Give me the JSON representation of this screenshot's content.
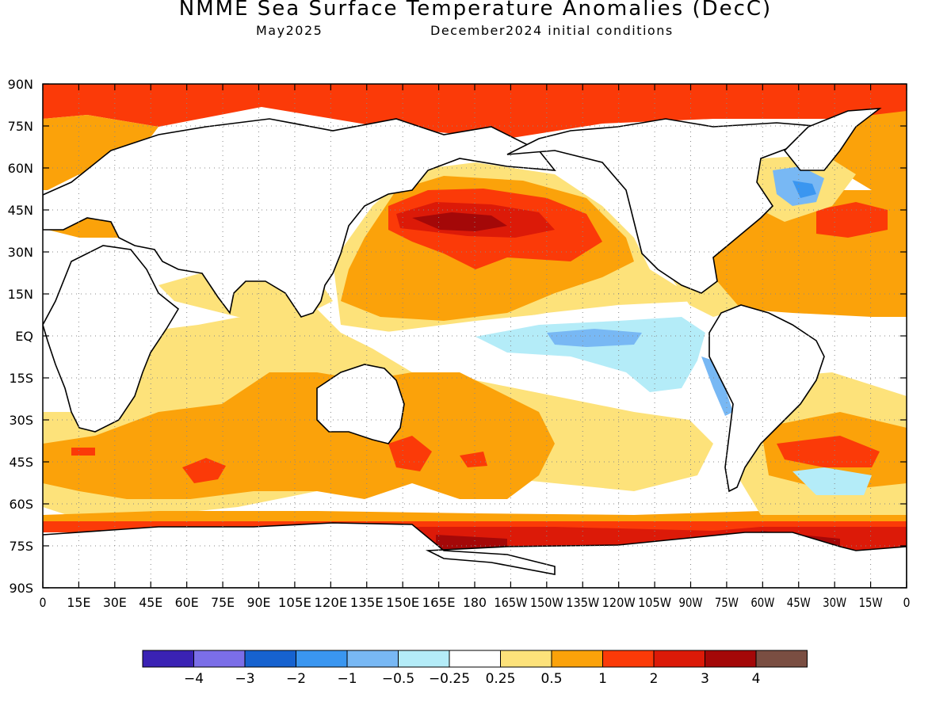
{
  "figure": {
    "title": "NMME Sea Surface Temperature Anomalies (DecC)",
    "subtitle_left": "May2025",
    "subtitle_right": "December2024 initial conditions"
  },
  "axes": {
    "lat_labels": [
      "90N",
      "75N",
      "60N",
      "45N",
      "30N",
      "15N",
      "EQ",
      "15S",
      "30S",
      "45S",
      "60S",
      "75S",
      "90S"
    ],
    "lat_values": [
      90,
      75,
      60,
      45,
      30,
      15,
      0,
      -15,
      -30,
      -45,
      -60,
      -75,
      -90
    ],
    "lon_labels": [
      "0",
      "15E",
      "30E",
      "45E",
      "60E",
      "75E",
      "90E",
      "105E",
      "120E",
      "135E",
      "150E",
      "165E",
      "180",
      "165W",
      "150W",
      "135W",
      "120W",
      "105W",
      "90W",
      "75W",
      "60W",
      "45W",
      "30W",
      "15W",
      "0"
    ],
    "lon_values": [
      0,
      15,
      30,
      45,
      60,
      75,
      90,
      105,
      120,
      135,
      150,
      165,
      180,
      195,
      210,
      225,
      240,
      255,
      270,
      285,
      300,
      315,
      330,
      345,
      360
    ],
    "grid": "dotted"
  },
  "colorbar": {
    "colors": [
      "#3a22b4",
      "#7b6ee8",
      "#1662cf",
      "#3a96f0",
      "#78b8f4",
      "#b4ecf8",
      "#ffffff",
      "#fde27a",
      "#fba20a",
      "#fb3a08",
      "#dc1a08",
      "#a40808",
      "#7a4e42"
    ],
    "labels": [
      "−4",
      "−3",
      "−2",
      "−1",
      "−0.5",
      "−0.25",
      "0.25",
      "0.5",
      "1",
      "2",
      "3",
      "4"
    ]
  },
  "chart_data": {
    "type": "heatmap",
    "title": "NMME Sea Surface Temperature Anomalies (DecC)",
    "units": "DecC",
    "lat_range": [
      -90,
      90
    ],
    "lon_range": [
      0,
      360
    ],
    "levels": [
      -4,
      -3,
      -2,
      -1,
      -0.5,
      -0.25,
      0.25,
      0.5,
      1,
      2,
      3,
      4
    ],
    "regions": [
      {
        "region": "Arctic Ocean (poleward of ~80N)",
        "lon_range": [
          0,
          360
        ],
        "lat_range": [
          80,
          90
        ],
        "anomaly": 2
      },
      {
        "region": "North Pacific central warm core",
        "lon_range": [
          150,
          215
        ],
        "lat_range": [
          33,
          48
        ],
        "anomaly": 3
      },
      {
        "region": "North Pacific",
        "lon_range": [
          135,
          235
        ],
        "lat_range": [
          25,
          55
        ],
        "anomaly": 1.5
      },
      {
        "region": "Northwest tropical Pacific",
        "lon_range": [
          130,
          210
        ],
        "lat_range": [
          5,
          25
        ],
        "anomaly": 1
      },
      {
        "region": "Central-eastern equatorial Pacific",
        "lon_range": [
          200,
          265
        ],
        "lat_range": [
          -8,
          3
        ],
        "anomaly": -0.5
      },
      {
        "region": "Equatorial Pacific near Galapagos",
        "lon_range": [
          255,
          280
        ],
        "lat_range": [
          -15,
          -5
        ],
        "anomaly": -0.75
      },
      {
        "region": "North Atlantic",
        "lon_range": [
          285,
          355
        ],
        "lat_range": [
          15,
          45
        ],
        "anomaly": 1
      },
      {
        "region": "North Atlantic subpolar (Labrador Sea)",
        "lon_range": [
          300,
          325
        ],
        "lat_range": [
          45,
          60
        ],
        "anomaly": -1
      },
      {
        "region": "Indian Ocean south",
        "lon_range": [
          30,
          110
        ],
        "lat_range": [
          -55,
          -20
        ],
        "anomaly": 1
      },
      {
        "region": "Southwest Pacific",
        "lon_range": [
          150,
          220
        ],
        "lat_range": [
          -50,
          -10
        ],
        "anomaly": 1
      },
      {
        "region": "Southern Ocean near Antarctica (Ross and Weddell Seas)",
        "lon_range": [
          160,
          350
        ],
        "lat_range": [
          -78,
          -66
        ],
        "anomaly": 2.5
      },
      {
        "region": "South Atlantic mid-latitudes",
        "lon_range": [
          300,
          350
        ],
        "lat_range": [
          -50,
          -35
        ],
        "anomaly": 1.5
      }
    ]
  }
}
